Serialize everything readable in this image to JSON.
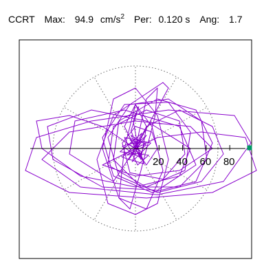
{
  "header": {
    "station": "CCRT",
    "max_label": "Max:",
    "max_value": "94.9",
    "max_unit": "cm/s",
    "max_unit_exp": "2",
    "per_label": "Per:",
    "per_value": "0.120 s",
    "ang_label": "Ang:",
    "ang_value": "1.7"
  },
  "chart_data": {
    "type": "polar-orbit",
    "title": "",
    "xlabel": "",
    "ylabel": "",
    "radial_ticks": [
      20,
      40,
      60,
      80
    ],
    "r_max": 100,
    "grid": true,
    "grid_style": "dotted",
    "max_marker": {
      "r": 94.9,
      "angle_deg": 1.7,
      "color": "#009966"
    },
    "trace_color": "#8800cc",
    "series": [
      {
        "points": [
          [
            0,
            0
          ],
          [
            3,
            5
          ],
          [
            -5,
            8
          ],
          [
            6,
            -4
          ],
          [
            -8,
            -6
          ],
          [
            10,
            3
          ],
          [
            -4,
            12
          ],
          [
            7,
            -10
          ],
          [
            -12,
            2
          ],
          [
            5,
            8
          ],
          [
            -3,
            -12
          ],
          [
            14,
            5
          ],
          [
            -10,
            10
          ],
          [
            2,
            -15
          ],
          [
            12,
            -6
          ],
          [
            -14,
            -3
          ],
          [
            6,
            14
          ],
          [
            -6,
            -10
          ],
          [
            10,
            12
          ],
          [
            -12,
            -8
          ],
          [
            8,
            -14
          ],
          [
            -4,
            16
          ],
          [
            3,
            38
          ],
          [
            -2,
            25
          ],
          [
            4,
            -8
          ],
          [
            9,
            6
          ],
          [
            -7,
            4
          ],
          [
            0,
            0
          ],
          [
            10,
            20
          ],
          [
            40,
            35
          ],
          [
            70,
            20
          ],
          [
            80,
            -5
          ],
          [
            60,
            -30
          ],
          [
            20,
            -40
          ],
          [
            -15,
            -25
          ],
          [
            -25,
            10
          ],
          [
            -5,
            40
          ],
          [
            30,
            45
          ],
          [
            60,
            25
          ],
          [
            65,
            -10
          ],
          [
            40,
            -35
          ],
          [
            5,
            -35
          ],
          [
            -20,
            -10
          ],
          [
            -15,
            25
          ],
          [
            20,
            45
          ],
          [
            55,
            35
          ],
          [
            70,
            5
          ],
          [
            55,
            -30
          ],
          [
            15,
            -40
          ],
          [
            -20,
            -25
          ],
          [
            -30,
            10
          ],
          [
            -10,
            40
          ],
          [
            30,
            42
          ],
          [
            50,
            15
          ],
          [
            45,
            -20
          ],
          [
            10,
            -35
          ],
          [
            -25,
            -15
          ],
          [
            -20,
            20
          ],
          [
            10,
            35
          ],
          [
            40,
            25
          ],
          [
            45,
            -5
          ],
          [
            25,
            -28
          ],
          [
            -5,
            -22
          ],
          [
            -12,
            5
          ],
          [
            0,
            20
          ],
          [
            15,
            15
          ],
          [
            20,
            0
          ],
          [
            10,
            -15
          ],
          [
            0,
            0
          ],
          [
            -30,
            20
          ],
          [
            -60,
            30
          ],
          [
            -90,
            25
          ],
          [
            -85,
            0
          ],
          [
            -50,
            -25
          ],
          [
            0,
            -35
          ],
          [
            40,
            -25
          ],
          [
            50,
            0
          ],
          [
            10,
            25
          ],
          [
            -40,
            35
          ],
          [
            -80,
            20
          ],
          [
            -75,
            -10
          ],
          [
            -30,
            -35
          ],
          [
            20,
            -38
          ],
          [
            55,
            -15
          ],
          [
            40,
            20
          ],
          [
            -10,
            35
          ],
          [
            -55,
            25
          ],
          [
            -60,
            -5
          ],
          [
            -20,
            -30
          ],
          [
            0,
            0
          ],
          [
            20,
            10
          ],
          [
            60,
            15
          ],
          [
            100,
            10
          ],
          [
            110,
            -20
          ],
          [
            70,
            -40
          ],
          [
            10,
            -45
          ],
          [
            -60,
            -40
          ],
          [
            -100,
            -20
          ],
          [
            -90,
            10
          ],
          [
            -40,
            25
          ],
          [
            30,
            35
          ],
          [
            90,
            30
          ],
          [
            105,
            5
          ],
          [
            80,
            -30
          ],
          [
            20,
            -42
          ],
          [
            -50,
            -35
          ],
          [
            -85,
            -10
          ],
          [
            -60,
            15
          ],
          [
            0,
            25
          ],
          [
            50,
            20
          ],
          [
            70,
            0
          ],
          [
            40,
            -20
          ],
          [
            0,
            -25
          ],
          [
            -30,
            -15
          ],
          [
            0,
            0
          ],
          [
            30,
            55
          ],
          [
            25,
            60
          ],
          [
            10,
            50
          ],
          [
            -20,
            30
          ],
          [
            -35,
            -10
          ],
          [
            -25,
            -50
          ],
          [
            0,
            -60
          ],
          [
            20,
            -50
          ],
          [
            30,
            -10
          ],
          [
            20,
            30
          ],
          [
            0,
            55
          ],
          [
            -20,
            45
          ],
          [
            -30,
            0
          ],
          [
            -15,
            -45
          ],
          [
            10,
            -55
          ],
          [
            25,
            -20
          ],
          [
            15,
            20
          ],
          [
            0,
            40
          ],
          [
            -10,
            20
          ],
          [
            0,
            0
          ],
          [
            10,
            45
          ],
          [
            20,
            55
          ],
          [
            18,
            30
          ],
          [
            5,
            -20
          ],
          [
            -5,
            -55
          ],
          [
            -15,
            -45
          ],
          [
            -10,
            0
          ],
          [
            0,
            40
          ],
          [
            10,
            20
          ],
          [
            5,
            -10
          ],
          [
            0,
            0
          ]
        ]
      }
    ]
  }
}
